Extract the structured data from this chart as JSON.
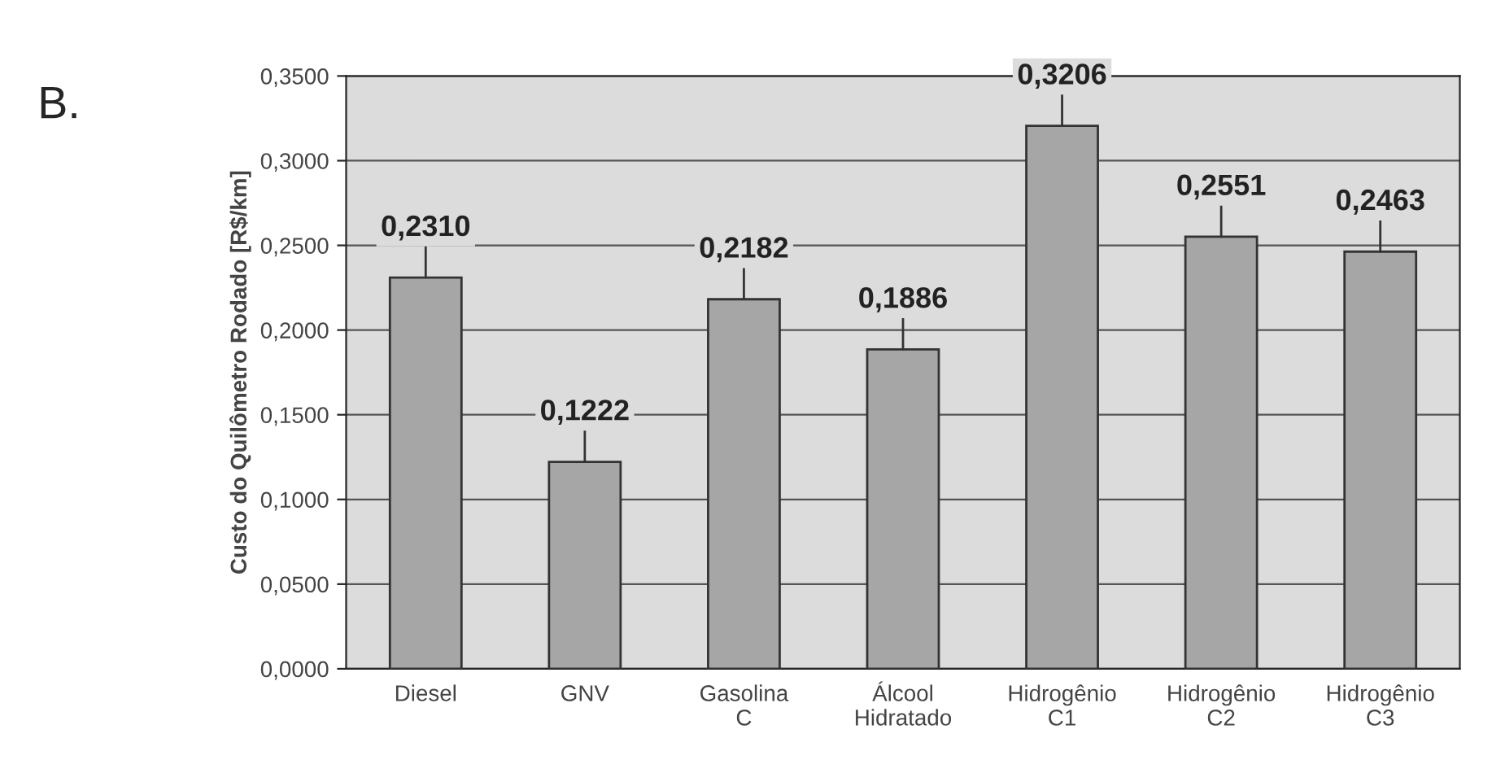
{
  "chart_data": {
    "type": "bar",
    "ylabel": "Custo do Quilômetro Rodado [R$/km]",
    "categories": [
      "Diesel",
      "GNV",
      "Gasolina\nC",
      "Álcool\nHidratado",
      "Hidrogênio\nC1",
      "Hidrogênio\nC2",
      "Hidrogênio\nC3"
    ],
    "values": [
      0.231,
      0.1222,
      0.2182,
      0.1886,
      0.3206,
      0.2551,
      0.2463
    ],
    "value_labels": [
      "0,2310",
      "0,1222",
      "0,2182",
      "0,1886",
      "0,3206",
      "0,2551",
      "0,2463"
    ],
    "color": "#a6a6a6",
    "ylim": [
      0,
      0.35
    ],
    "yticks": [
      {
        "value": 0,
        "label": "0,0000"
      },
      {
        "value": 0.05,
        "label": "0,0500"
      },
      {
        "value": 0.1,
        "label": "0,1000"
      },
      {
        "value": 0.15,
        "label": "0,1500"
      },
      {
        "value": 0.2,
        "label": "0,2000"
      },
      {
        "value": 0.25,
        "label": "0,2500"
      },
      {
        "value": 0.3,
        "label": "0,3000"
      },
      {
        "value": 0.35,
        "label": "0,3500"
      }
    ],
    "grid": "y",
    "annotations": [
      "B."
    ]
  }
}
